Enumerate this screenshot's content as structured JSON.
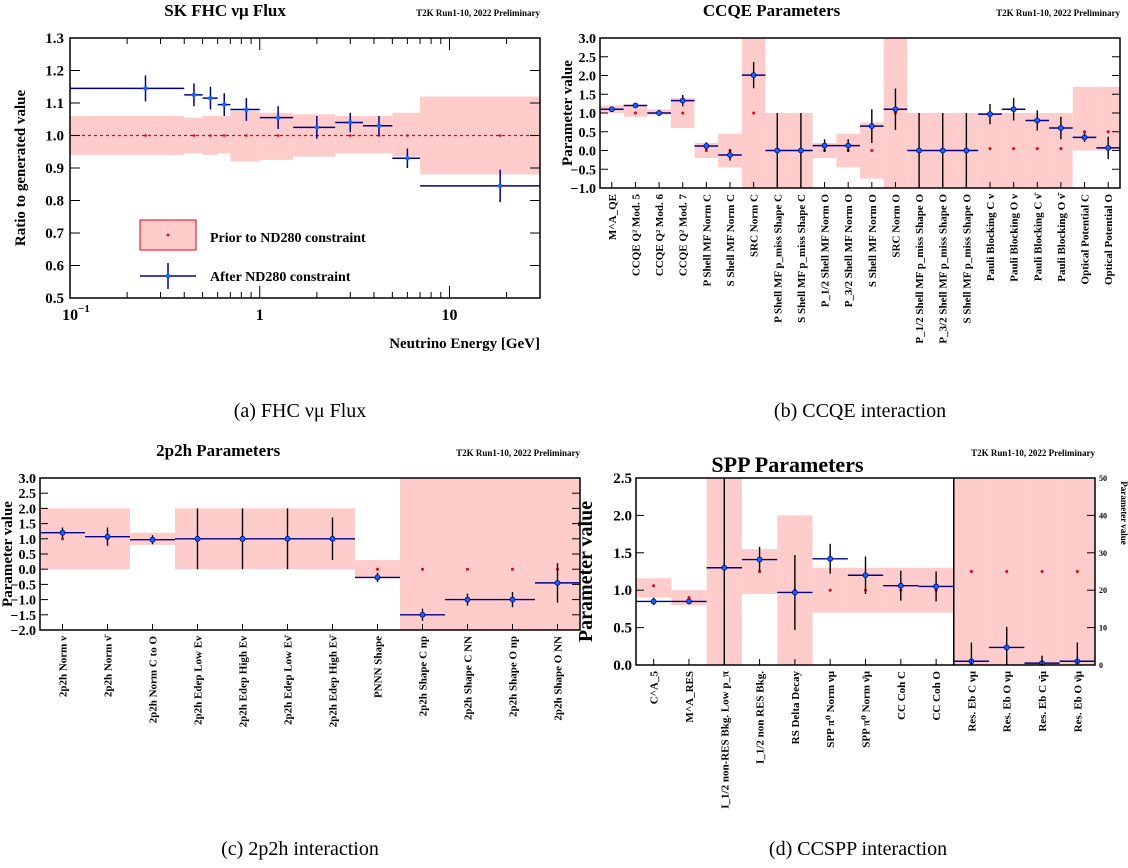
{
  "colors": {
    "band": "#ffcccc",
    "band_edge": "#ee8888",
    "prior_dot": "#e8000b",
    "fit": "#00008b",
    "fit_marker": "#1565ff",
    "prior_line": "#e8000b"
  },
  "chart_data": [
    {
      "id": "a",
      "type": "scatter",
      "title": "SK FHC  νμ Flux",
      "preliminary": "T2K Run1-10, 2022 Preliminary",
      "caption": "(a) FHC νμ Flux",
      "xlabel": "Neutrino Energy [GeV]",
      "ylabel": "Ratio to generated value",
      "xscale": "log",
      "xlim": [
        0.1,
        30
      ],
      "ylim": [
        0.5,
        1.3
      ],
      "yticks": [
        "0.5",
        "0.6",
        "0.7",
        "0.8",
        "0.9",
        "1.0",
        "1.1",
        "1.2",
        "1.3"
      ],
      "xticks": [
        {
          "v": 0.1,
          "label": "10",
          "sup": "−1"
        },
        {
          "v": 1,
          "label": "1",
          "sup": ""
        },
        {
          "v": 10,
          "label": "10",
          "sup": ""
        }
      ],
      "legend": {
        "prior": "Prior to ND280 constraint",
        "post": "After ND280 constraint"
      },
      "prior_bands": [
        {
          "x0": 0.1,
          "x1": 0.4,
          "lo": 0.94,
          "hi": 1.06
        },
        {
          "x0": 0.4,
          "x1": 0.5,
          "lo": 0.945,
          "hi": 1.055
        },
        {
          "x0": 0.5,
          "x1": 0.6,
          "lo": 0.94,
          "hi": 1.06
        },
        {
          "x0": 0.6,
          "x1": 0.7,
          "lo": 0.945,
          "hi": 1.06
        },
        {
          "x0": 0.7,
          "x1": 1.0,
          "lo": 0.92,
          "hi": 1.075
        },
        {
          "x0": 1.0,
          "x1": 1.5,
          "lo": 0.925,
          "hi": 1.07
        },
        {
          "x0": 1.5,
          "x1": 2.5,
          "lo": 0.935,
          "hi": 1.065
        },
        {
          "x0": 2.5,
          "x1": 3.5,
          "lo": 0.945,
          "hi": 1.06
        },
        {
          "x0": 3.5,
          "x1": 5.0,
          "lo": 0.945,
          "hi": 1.06
        },
        {
          "x0": 5.0,
          "x1": 7.0,
          "lo": 0.935,
          "hi": 1.07
        },
        {
          "x0": 7.0,
          "x1": 30,
          "lo": 0.88,
          "hi": 1.12
        }
      ],
      "post_points": [
        {
          "x": 0.25,
          "x0": 0.1,
          "x1": 0.4,
          "y": 1.145,
          "err": 0.04
        },
        {
          "x": 0.45,
          "x0": 0.4,
          "x1": 0.5,
          "y": 1.125,
          "err": 0.035
        },
        {
          "x": 0.55,
          "x0": 0.5,
          "x1": 0.6,
          "y": 1.115,
          "err": 0.035
        },
        {
          "x": 0.65,
          "x0": 0.6,
          "x1": 0.7,
          "y": 1.095,
          "err": 0.035
        },
        {
          "x": 0.85,
          "x0": 0.7,
          "x1": 1.0,
          "y": 1.08,
          "err": 0.035
        },
        {
          "x": 1.25,
          "x0": 1.0,
          "x1": 1.5,
          "y": 1.055,
          "err": 0.035
        },
        {
          "x": 2.0,
          "x0": 1.5,
          "x1": 2.5,
          "y": 1.025,
          "err": 0.035
        },
        {
          "x": 3.0,
          "x0": 2.5,
          "x1": 3.5,
          "y": 1.04,
          "err": 0.03
        },
        {
          "x": 4.25,
          "x0": 3.5,
          "x1": 5.0,
          "y": 1.03,
          "err": 0.03
        },
        {
          "x": 6.0,
          "x0": 5.0,
          "x1": 7.0,
          "y": 0.93,
          "err": 0.03
        },
        {
          "x": 18.5,
          "x0": 7.0,
          "x1": 30,
          "y": 0.845,
          "err": 0.05
        }
      ],
      "prior_value": 1.0
    },
    {
      "id": "b",
      "type": "scatter",
      "title": "CCQE Parameters",
      "preliminary": "T2K Run1-10, 2022 Preliminary",
      "caption": "(b) CCQE interaction",
      "ylabel": "Parameter value",
      "ylim": [
        -1.0,
        3.0
      ],
      "yticks": [
        "−1.0",
        "−0.5",
        "0.0",
        "0.5",
        "1.0",
        "1.5",
        "2.0",
        "2.5",
        "3.0"
      ],
      "categories": [
        "M^A_QE",
        "CCQE Q² Mod. 5",
        "CCQE Q² Mod. 6",
        "CCQE Q² Mod. 7",
        "P Shell MF Norm C",
        "S Shell MF Norm C",
        "SRC Norm C",
        "P Shell MF p_miss Shape C",
        "S Shell MF p_miss Shape C",
        "P_1/2 Shell MF Norm O",
        "P_3/2 Shell MF Norm O",
        "S Shell MF Norm O",
        "SRC Norm O",
        "P_1/2 Shell MF p_miss Shape O",
        "P_3/2 Shell MF p_miss Shape O",
        "S Shell MF p_miss Shape O",
        "Pauli Blocking C ν",
        "Pauli Blocking O ν",
        "Pauli Blocking C ν̄",
        "Pauli Blocking O ν̄",
        "Optical Potential C",
        "Optical Potential O"
      ],
      "prior": [
        {
          "y": 1.07,
          "lo": 1.0,
          "hi": 1.2
        },
        {
          "y": 1.0,
          "lo": 0.9,
          "hi": 1.2
        },
        {
          "y": 1.0,
          "lo": 0.95,
          "hi": 1.1
        },
        {
          "y": 1.0,
          "lo": 0.6,
          "hi": 1.4
        },
        {
          "y": 0.0,
          "lo": -0.2,
          "hi": 0.2
        },
        {
          "y": 0.0,
          "lo": -0.45,
          "hi": 0.45
        },
        {
          "y": 1.0,
          "lo": -1.0,
          "hi": 3.0
        },
        {
          "y": 0.0,
          "lo": -1.0,
          "hi": 1.0
        },
        {
          "y": 0.0,
          "lo": -1.0,
          "hi": 1.0
        },
        {
          "y": 0.0,
          "lo": -0.2,
          "hi": 0.2
        },
        {
          "y": 0.0,
          "lo": -0.45,
          "hi": 0.45
        },
        {
          "y": 0.0,
          "lo": -0.75,
          "hi": 0.75
        },
        {
          "y": 1.0,
          "lo": -1.0,
          "hi": 3.0
        },
        {
          "y": 0.0,
          "lo": -1.0,
          "hi": 1.0
        },
        {
          "y": 0.0,
          "lo": -1.0,
          "hi": 1.0
        },
        {
          "y": 0.0,
          "lo": -1.0,
          "hi": 1.0
        },
        {
          "y": 0.05,
          "lo": -1.0,
          "hi": 1.0
        },
        {
          "y": 0.05,
          "lo": -1.0,
          "hi": 1.0
        },
        {
          "y": 0.05,
          "lo": -1.0,
          "hi": 1.0
        },
        {
          "y": 0.05,
          "lo": -1.0,
          "hi": 1.0
        },
        {
          "y": 0.5,
          "lo": 0.0,
          "hi": 1.7
        },
        {
          "y": 0.5,
          "lo": 0.0,
          "hi": 1.7
        }
      ],
      "post": [
        {
          "y": 1.1,
          "err": 0.05
        },
        {
          "y": 1.2,
          "err": 0.05
        },
        {
          "y": 1.0,
          "err": 0.08
        },
        {
          "y": 1.33,
          "err": 0.15
        },
        {
          "y": 0.12,
          "err": 0.1
        },
        {
          "y": -0.12,
          "err": 0.15
        },
        {
          "y": 2.01,
          "err": 0.35
        },
        {
          "y": 0.0,
          "err": 1.0
        },
        {
          "y": 0.0,
          "err": 1.0
        },
        {
          "y": 0.13,
          "err": 0.17
        },
        {
          "y": 0.13,
          "err": 0.17
        },
        {
          "y": 0.65,
          "err": 0.45
        },
        {
          "y": 1.1,
          "err": 0.55
        },
        {
          "y": 0.0,
          "err": 1.0
        },
        {
          "y": 0.0,
          "err": 1.0
        },
        {
          "y": 0.0,
          "err": 1.0
        },
        {
          "y": 0.97,
          "err": 0.27
        },
        {
          "y": 1.1,
          "err": 0.3
        },
        {
          "y": 0.8,
          "err": 0.27
        },
        {
          "y": 0.6,
          "err": 0.3
        },
        {
          "y": 0.35,
          "err": 0.12
        },
        {
          "y": 0.07,
          "err": 0.3
        }
      ]
    },
    {
      "id": "c",
      "type": "scatter",
      "title": "2p2h Parameters",
      "preliminary": "T2K Run1-10, 2022 Preliminary",
      "caption": "(c) 2p2h interaction",
      "ylabel": "Parameter value",
      "ylim": [
        -2.0,
        3.0
      ],
      "yticks": [
        "−2.0",
        "−1.5",
        "−1.0",
        "−0.5",
        "0.0",
        "0.5",
        "1.0",
        "1.5",
        "2.0",
        "2.5",
        "3.0"
      ],
      "categories": [
        "2p2h Norm ν",
        "2p2h Norm ν̄",
        "2p2h Norm C to O",
        "2p2h Edep Low Eν",
        "2p2h Edep High Eν",
        "2p2h Edep Low Eν̄",
        "2p2h Edep High Eν̄",
        "PNNN Shape",
        "2p2h Shape C np",
        "2p2h Shape C NN",
        "2p2h Shape O np",
        "2p2h Shape O NN"
      ],
      "prior": [
        {
          "y": 1.0,
          "lo": 0.0,
          "hi": 2.0
        },
        {
          "y": 1.0,
          "lo": 0.0,
          "hi": 2.0
        },
        {
          "y": 1.0,
          "lo": 0.8,
          "hi": 1.2
        },
        {
          "y": 1.0,
          "lo": 0.0,
          "hi": 2.0
        },
        {
          "y": 1.0,
          "lo": 0.0,
          "hi": 2.0
        },
        {
          "y": 1.0,
          "lo": 0.0,
          "hi": 2.0
        },
        {
          "y": 1.0,
          "lo": 0.0,
          "hi": 2.0
        },
        {
          "y": 0.0,
          "lo": -0.3,
          "hi": 0.3
        },
        {
          "y": 0.0,
          "lo": -2.0,
          "hi": 3.0
        },
        {
          "y": 0.0,
          "lo": -2.0,
          "hi": 3.0
        },
        {
          "y": 0.0,
          "lo": -2.0,
          "hi": 3.0
        },
        {
          "y": 0.0,
          "lo": -2.0,
          "hi": 3.0
        }
      ],
      "post": [
        {
          "y": 1.2,
          "err": 0.17
        },
        {
          "y": 1.07,
          "err": 0.3
        },
        {
          "y": 0.97,
          "err": 0.15
        },
        {
          "y": 1.0,
          "err": 1.0
        },
        {
          "y": 1.0,
          "err": 1.0
        },
        {
          "y": 1.0,
          "err": 1.0
        },
        {
          "y": 1.0,
          "err": 0.7
        },
        {
          "y": -0.27,
          "err": 0.15
        },
        {
          "y": -1.5,
          "err": 0.2
        },
        {
          "y": -1.0,
          "err": 0.2
        },
        {
          "y": -1.0,
          "err": 0.25
        },
        {
          "y": -0.45,
          "err": 0.65
        }
      ]
    },
    {
      "id": "d",
      "type": "scatter",
      "title": "SPP Parameters",
      "preliminary": "T2K Run1-10, 2022 Preliminary",
      "caption": "(d) CCSPP interaction",
      "ylabel": "Parameter value",
      "ylabel_right": "Parameter value",
      "ylim": [
        0.0,
        2.5
      ],
      "yticks": [
        "0.0",
        "0.5",
        "1.0",
        "1.5",
        "2.0",
        "2.5"
      ],
      "ylim_right": [
        0,
        50
      ],
      "yticks_right": [
        "0",
        "10",
        "20",
        "30",
        "40",
        "50"
      ],
      "categories": [
        "C^A_5",
        "M^A_RES",
        "I_1/2 non-RES Bkg. Low p_π",
        "I_1/2 non RES Bkg.",
        "RS Delta Decay",
        "SPP π⁰ Norm νμ",
        "SPP π⁰ Norm ν̄μ",
        "CC Coh C",
        "CC Coh O",
        "Res. Eb C νμ",
        "Res. Eb O νμ",
        "Res. Eb C ν̄μ",
        "Res. Eb O ν̄μ"
      ],
      "prior": [
        {
          "y": 1.06,
          "lo": 0.9,
          "hi": 1.16
        },
        {
          "y": 0.9,
          "lo": 0.8,
          "hi": 1.0
        },
        {
          "y": 1.3,
          "lo": 0.0,
          "hi": 2.5
        },
        {
          "y": 1.25,
          "lo": 0.95,
          "hi": 1.55
        },
        {
          "y": 1.0,
          "lo": 0.0,
          "hi": 2.0
        },
        {
          "y": 1.0,
          "lo": 0.7,
          "hi": 1.3
        },
        {
          "y": 1.0,
          "lo": 0.7,
          "hi": 1.3
        },
        {
          "y": 1.0,
          "lo": 0.7,
          "hi": 1.3
        },
        {
          "y": 1.0,
          "lo": 0.7,
          "hi": 1.3
        },
        {
          "y": 25,
          "lo": 0,
          "hi": 50,
          "axis": "right"
        },
        {
          "y": 25,
          "lo": 0,
          "hi": 50,
          "axis": "right"
        },
        {
          "y": 25,
          "lo": 0,
          "hi": 50,
          "axis": "right"
        },
        {
          "y": 25,
          "lo": 0,
          "hi": 50,
          "axis": "right"
        }
      ],
      "post": [
        {
          "y": 0.85,
          "err": 0.05
        },
        {
          "y": 0.85,
          "err": 0.03
        },
        {
          "y": 1.3,
          "err": 1.3
        },
        {
          "y": 1.41,
          "err": 0.17
        },
        {
          "y": 0.97,
          "err": 0.5
        },
        {
          "y": 1.42,
          "err": 0.2
        },
        {
          "y": 1.2,
          "err": 0.25
        },
        {
          "y": 1.06,
          "err": 0.2
        },
        {
          "y": 1.05,
          "err": 0.2
        },
        {
          "y": 1.0,
          "err": 5.0,
          "axis": "right"
        },
        {
          "y": 4.7,
          "err": 5.5,
          "axis": "right"
        },
        {
          "y": 0.5,
          "err": 2.0,
          "axis": "right"
        },
        {
          "y": 1.0,
          "err": 5.0,
          "axis": "right"
        }
      ]
    }
  ]
}
